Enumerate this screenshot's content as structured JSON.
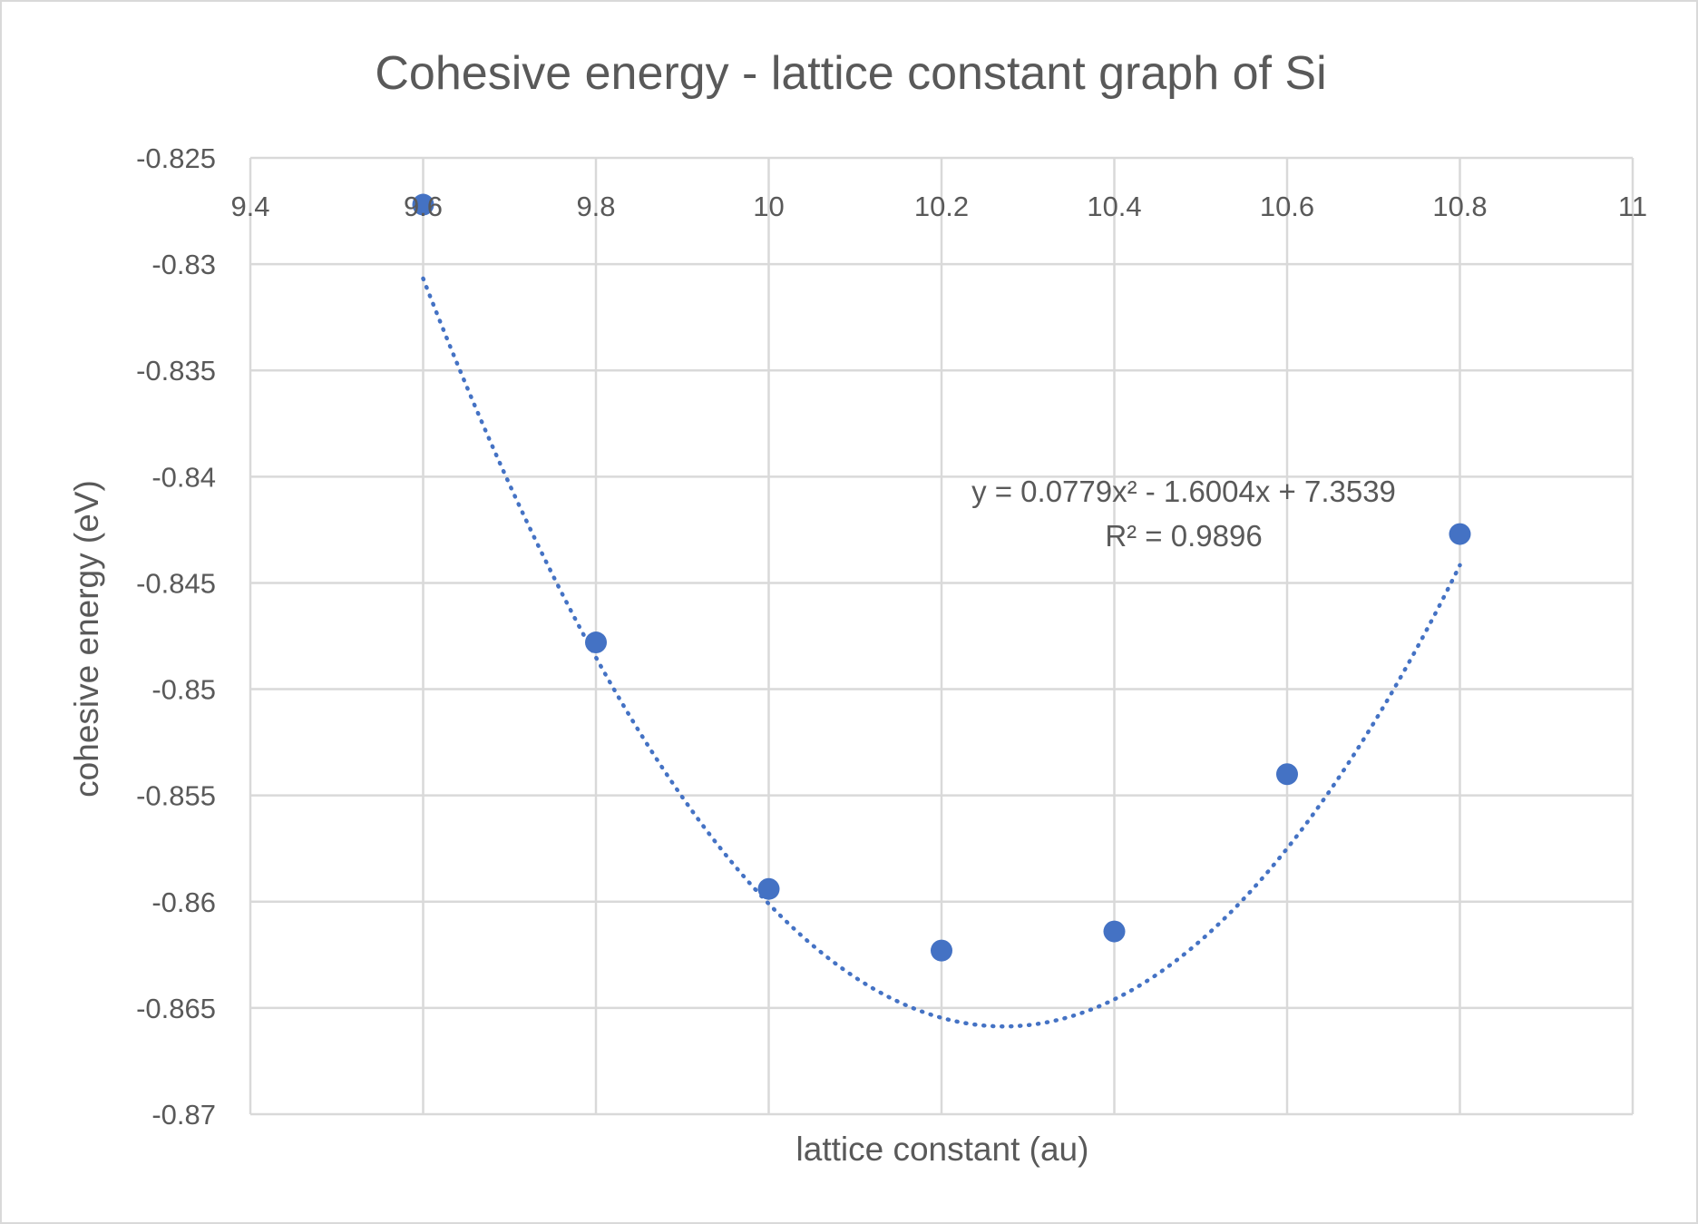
{
  "chart_data": {
    "type": "scatter",
    "title": "Cohesive energy - lattice constant graph of Si",
    "xlabel": "lattice constant (au)",
    "ylabel": "cohesive energy (eV)",
    "xlim": [
      9.4,
      11
    ],
    "ylim": [
      -0.87,
      -0.825
    ],
    "x_ticks": [
      "9.4",
      "9.6",
      "9.8",
      "10",
      "10.2",
      "10.4",
      "10.6",
      "10.8",
      "11"
    ],
    "y_ticks": [
      "-0.825",
      "-0.83",
      "-0.835",
      "-0.84",
      "-0.845",
      "-0.85",
      "-0.855",
      "-0.86",
      "-0.865",
      "-0.87"
    ],
    "x_axis_position": "top",
    "grid": true,
    "marker_color": "#4472c4",
    "series": [
      {
        "x": [
          9.6,
          9.8,
          10.0,
          10.2,
          10.4,
          10.6,
          10.8
        ],
        "y": [
          -0.8272,
          -0.8478,
          -0.8594,
          -0.8623,
          -0.8614,
          -0.854,
          -0.8427
        ]
      }
    ],
    "trendline": {
      "type": "polynomial",
      "order": 2,
      "coefficients": [
        0.0779,
        -1.6004,
        7.3539
      ],
      "equation": "y = 0.0779x² - 1.6004x + 7.3539",
      "r_squared": "R² = 0.9896"
    }
  }
}
